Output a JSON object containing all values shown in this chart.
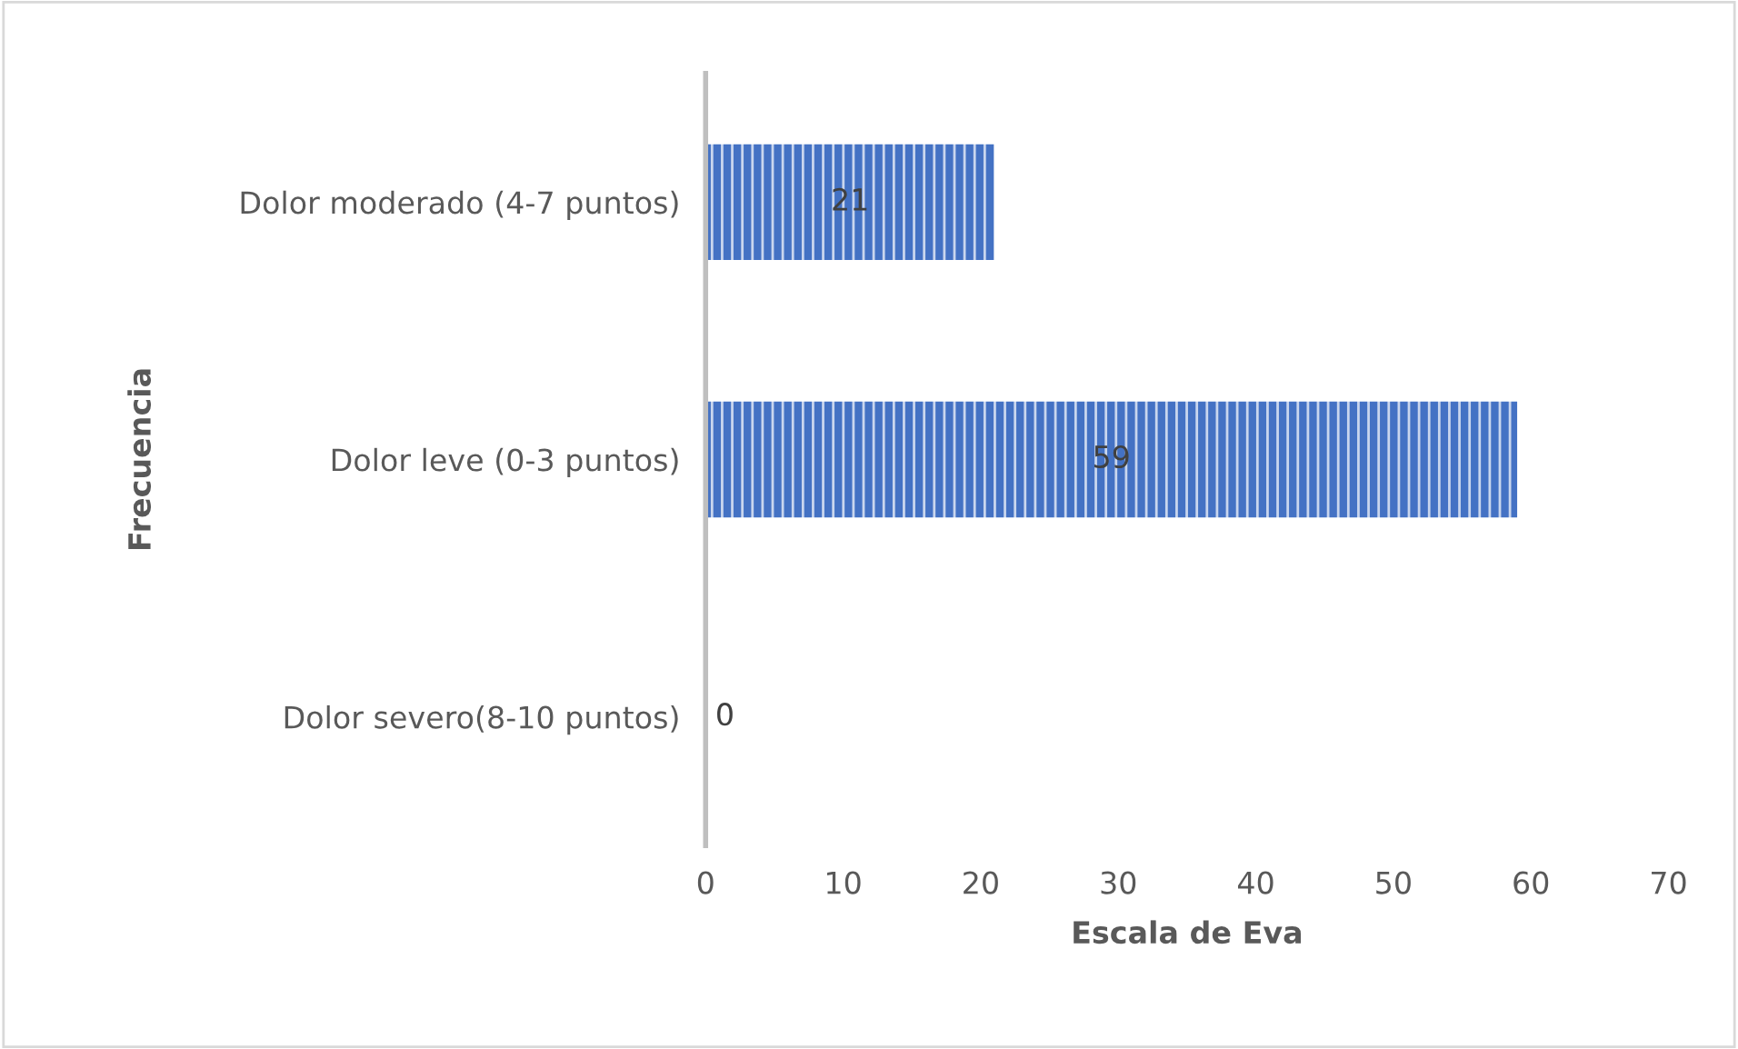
{
  "chart_data": {
    "type": "bar",
    "orientation": "horizontal",
    "xlabel": "Escala de Eva",
    "ylabel": "Frecuencia",
    "categories": [
      "Dolor moderado (4-7 puntos)",
      "Dolor leve (0-3 puntos)",
      "Dolor severo(8-10 puntos)"
    ],
    "values": [
      21,
      59,
      0
    ],
    "color": "#4472c4",
    "xlim": [
      0,
      70
    ],
    "xticks": [
      0,
      10,
      20,
      30,
      40,
      50,
      60,
      70
    ],
    "grid": false,
    "data_labels": true
  }
}
